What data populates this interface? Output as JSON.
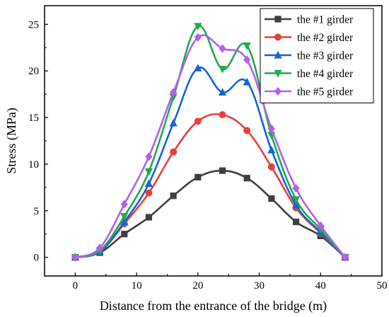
{
  "chart_data": {
    "type": "line",
    "title": "",
    "xlabel": "Distance from the entrance of the bridge (m)",
    "ylabel": "Stress (MPa)",
    "xlim": [
      -5,
      50
    ],
    "ylim": [
      -2,
      27
    ],
    "x_ticks": [
      0,
      10,
      20,
      30,
      40,
      50
    ],
    "y_ticks": [
      0,
      5,
      10,
      15,
      20,
      25
    ],
    "grid": false,
    "legend_position": "top-right",
    "x": [
      0,
      4,
      8,
      12,
      16,
      20,
      24,
      28,
      32,
      36,
      40,
      44
    ],
    "series": [
      {
        "name": "the #1 girder",
        "color": "#3f3f3f",
        "marker": "square",
        "values": [
          0,
          0.5,
          2.5,
          4.3,
          6.6,
          8.6,
          9.3,
          8.5,
          6.3,
          3.8,
          2.3,
          0
        ]
      },
      {
        "name": "the #2 girder",
        "color": "#e8403a",
        "marker": "circle",
        "values": [
          0,
          0.6,
          3.6,
          6.9,
          11.3,
          14.6,
          15.3,
          13.6,
          9.7,
          5.3,
          2.6,
          0
        ]
      },
      {
        "name": "the #3 girder",
        "color": "#1463d8",
        "marker": "triangle-up",
        "values": [
          0,
          0.6,
          3.8,
          7.9,
          14.4,
          20.3,
          17.7,
          18.8,
          11.5,
          5.6,
          2.7,
          0
        ]
      },
      {
        "name": "the #4 girder",
        "color": "#1fab4a",
        "marker": "triangle-down",
        "values": [
          0,
          0.7,
          4.4,
          9.2,
          17.2,
          24.8,
          20.2,
          22.7,
          13.1,
          6.2,
          3.0,
          0
        ]
      },
      {
        "name": "the #5 girder",
        "color": "#b360ee",
        "marker": "diamond",
        "values": [
          0,
          1.0,
          5.7,
          10.8,
          17.7,
          23.6,
          22.4,
          21.2,
          13.8,
          7.4,
          3.4,
          0
        ]
      }
    ]
  }
}
